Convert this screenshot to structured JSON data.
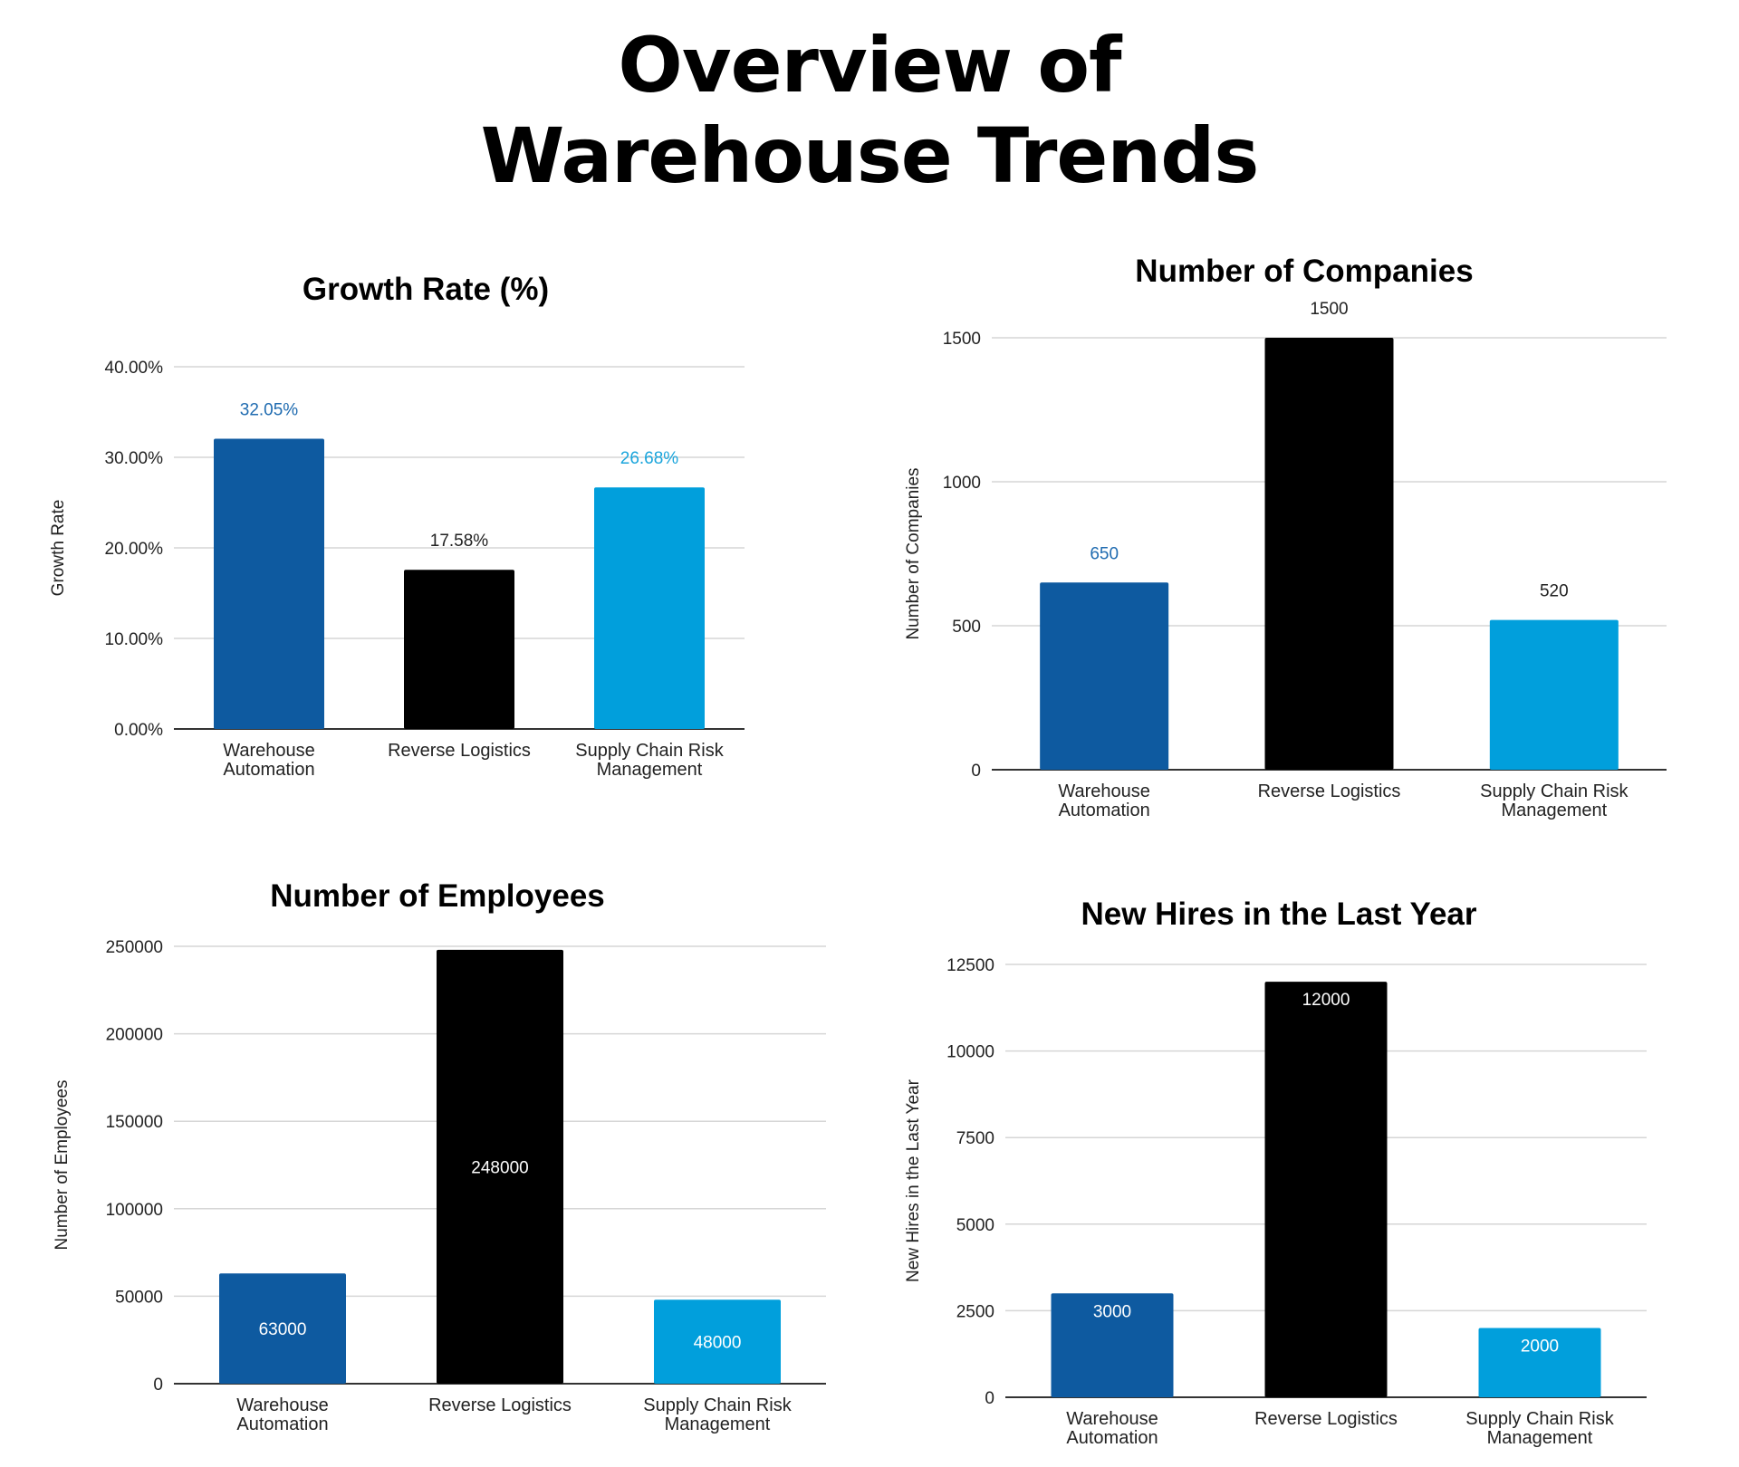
{
  "page": {
    "title_lines": [
      "Overview of",
      "Warehouse Trends"
    ]
  },
  "colors": {
    "warehouse_automation": "#0e5aa0",
    "reverse_logistics": "#000000",
    "supply_chain_risk": "#019fdc",
    "grid": "#d6d6d6"
  },
  "chart_data": [
    {
      "type": "bar",
      "title": "Growth Rate (%)",
      "ylabel": "Growth Rate",
      "xlabel": "",
      "categories": [
        "Warehouse Automation",
        "Reverse Logistics",
        "Supply Chain Risk Management"
      ],
      "category_lines": [
        [
          "Warehouse",
          "Automation"
        ],
        [
          "Reverse Logistics"
        ],
        [
          "Supply Chain Risk",
          "Management"
        ]
      ],
      "values": [
        32.05,
        17.58,
        26.68
      ],
      "data_labels": [
        "32.05%",
        "17.58%",
        "26.68%"
      ],
      "data_label_colors": [
        "#1f6bb0",
        "#222222",
        "#1aa5dc"
      ],
      "data_label_position": "above",
      "ylim": [
        0,
        40
      ],
      "yticks": [
        0,
        10,
        20,
        30,
        40
      ],
      "ytick_labels": [
        "0.00%",
        "10.00%",
        "20.00%",
        "30.00%",
        "40.00%"
      ],
      "grid": true
    },
    {
      "type": "bar",
      "title": "Number of Companies",
      "ylabel": "Number of Companies",
      "xlabel": "",
      "categories": [
        "Warehouse Automation",
        "Reverse Logistics",
        "Supply Chain Risk Management"
      ],
      "category_lines": [
        [
          "Warehouse",
          "Automation"
        ],
        [
          "Reverse Logistics"
        ],
        [
          "Supply Chain Risk",
          "Management"
        ]
      ],
      "values": [
        650,
        1500,
        520
      ],
      "data_labels": [
        "650",
        "1500",
        "520"
      ],
      "data_label_colors": [
        "#1f6bb0",
        "#222222",
        "#222222"
      ],
      "data_label_position": "above",
      "ylim": [
        0,
        1500
      ],
      "yticks": [
        0,
        500,
        1000,
        1500
      ],
      "ytick_labels": [
        "0",
        "500",
        "1000",
        "1500"
      ],
      "grid": true
    },
    {
      "type": "bar",
      "title": "Number of Employees",
      "ylabel": "Number of Employees",
      "xlabel": "",
      "categories": [
        "Warehouse Automation",
        "Reverse Logistics",
        "Supply Chain Risk Management"
      ],
      "category_lines": [
        [
          "Warehouse",
          "Automation"
        ],
        [
          "Reverse Logistics"
        ],
        [
          "Supply Chain Risk",
          "Management"
        ]
      ],
      "values": [
        63000,
        248000,
        48000
      ],
      "data_labels": [
        "63000",
        "248000",
        "48000"
      ],
      "data_label_colors": [
        "#ffffff",
        "#ffffff",
        "#ffffff"
      ],
      "data_label_position": "inside-center",
      "ylim": [
        0,
        250000
      ],
      "yticks": [
        0,
        50000,
        100000,
        150000,
        200000,
        250000
      ],
      "ytick_labels": [
        "0",
        "50000",
        "100000",
        "150000",
        "200000",
        "250000"
      ],
      "grid": true
    },
    {
      "type": "bar",
      "title": "New Hires in the Last Year",
      "ylabel": "New Hires in the Last Year",
      "xlabel": "",
      "categories": [
        "Warehouse Automation",
        "Reverse Logistics",
        "Supply Chain Risk Management"
      ],
      "category_lines": [
        [
          "Warehouse",
          "Automation"
        ],
        [
          "Reverse Logistics"
        ],
        [
          "Supply Chain Risk",
          "Management"
        ]
      ],
      "values": [
        3000,
        12000,
        2000
      ],
      "data_labels": [
        "3000",
        "12000",
        "2000"
      ],
      "data_label_colors": [
        "#ffffff",
        "#ffffff",
        "#ffffff"
      ],
      "data_label_position": "inside-top",
      "ylim": [
        0,
        12500
      ],
      "yticks": [
        0,
        2500,
        5000,
        7500,
        10000,
        12500
      ],
      "ytick_labels": [
        "0",
        "2500",
        "5000",
        "7500",
        "10000",
        "12500"
      ],
      "grid": true
    }
  ]
}
